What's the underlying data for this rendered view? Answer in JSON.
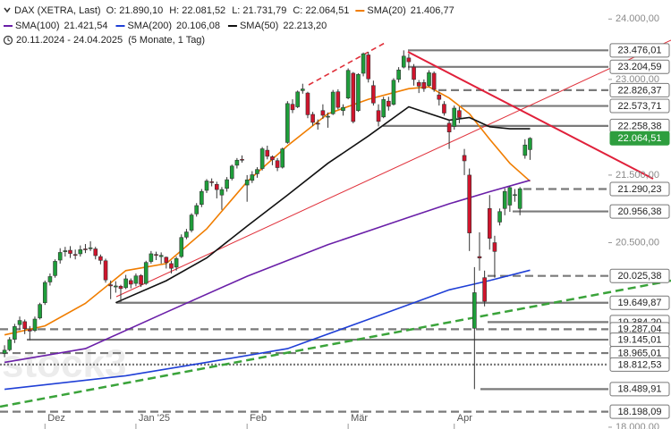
{
  "chart_data": {
    "type": "candlestick",
    "instrument": "DAX (XETRA, Last)",
    "ohlc_labels": [
      "O: 21.890,10",
      "H: 22.081,52",
      "L: 21.731,79",
      "C: 22.064,51"
    ],
    "range": "20.11.2024 - 24.04.2025",
    "range_note": "(5 Monate, 1 Tag)",
    "watermark": "stock3",
    "log_y": true,
    "grid": false,
    "up_color": "#1e9e3a",
    "down_color": "#d0142c",
    "ylim": [
      17977,
      24324
    ],
    "yticks": [
      {
        "value": 24000,
        "label": "24.000,00"
      },
      {
        "value": 23000,
        "label": "23.000,00"
      },
      {
        "value": 21500,
        "label": "21.500,00"
      },
      {
        "value": 20500,
        "label": "20.500,00"
      },
      {
        "value": 18000,
        "label": "18.000,00"
      }
    ],
    "xlim": [
      -0.9,
      119.5
    ],
    "xticks": [
      {
        "value": 8,
        "label": "Dez"
      },
      {
        "value": 26,
        "label": "Jan '25"
      },
      {
        "value": 48,
        "label": "Feb"
      },
      {
        "value": 68,
        "label": "Mär"
      },
      {
        "value": 89,
        "label": "Apr"
      }
    ],
    "candles": [
      [
        18960,
        19070,
        18910,
        19004
      ],
      [
        19010,
        19180,
        18990,
        19146
      ],
      [
        19150,
        19360,
        19100,
        19323
      ],
      [
        19350,
        19460,
        19280,
        19406
      ],
      [
        19390,
        19420,
        19220,
        19295
      ],
      [
        19280,
        19330,
        19140,
        19262
      ],
      [
        19270,
        19460,
        19250,
        19425
      ],
      [
        19440,
        19650,
        19420,
        19626
      ],
      [
        19650,
        19960,
        19620,
        19933
      ],
      [
        19940,
        20060,
        19890,
        20016
      ],
      [
        20030,
        20260,
        20000,
        20232
      ],
      [
        20250,
        20420,
        20200,
        20359
      ],
      [
        20370,
        20440,
        20300,
        20384
      ],
      [
        20390,
        20450,
        20280,
        20345
      ],
      [
        20330,
        20400,
        20260,
        20329
      ],
      [
        20340,
        20460,
        20300,
        20399
      ],
      [
        20410,
        20480,
        20350,
        20405
      ],
      [
        20420,
        20520,
        20380,
        20426
      ],
      [
        20410,
        20440,
        20260,
        20314
      ],
      [
        20300,
        20330,
        20190,
        20246
      ],
      [
        20240,
        20270,
        19930,
        19969
      ],
      [
        19900,
        19960,
        19700,
        19885
      ],
      [
        19870,
        19950,
        19790,
        19884
      ],
      [
        19880,
        19900,
        19660,
        19848
      ],
      [
        19860,
        20040,
        19840,
        19984
      ],
      [
        19960,
        19990,
        19850,
        19909
      ],
      [
        19920,
        20060,
        19880,
        20025
      ],
      [
        20030,
        20050,
        19870,
        19906
      ],
      [
        19920,
        20240,
        19900,
        20216
      ],
      [
        20230,
        20380,
        20200,
        20340
      ],
      [
        20330,
        20370,
        20250,
        20329
      ],
      [
        20300,
        20360,
        20200,
        20317
      ],
      [
        20290,
        20300,
        20130,
        20215
      ],
      [
        20200,
        20240,
        20060,
        20133
      ],
      [
        20150,
        20300,
        20100,
        20271
      ],
      [
        20300,
        20620,
        20280,
        20575
      ],
      [
        20580,
        20700,
        20550,
        20655
      ],
      [
        20680,
        20930,
        20650,
        20903
      ],
      [
        20920,
        21080,
        20880,
        21043
      ],
      [
        21060,
        21290,
        21020,
        21254
      ],
      [
        21270,
        21440,
        21230,
        21411
      ],
      [
        21400,
        21450,
        21330,
        21394
      ],
      [
        21360,
        21400,
        21150,
        21282
      ],
      [
        21200,
        21320,
        20980,
        21282
      ],
      [
        21300,
        21470,
        21250,
        21430
      ],
      [
        21450,
        21660,
        21420,
        21637
      ],
      [
        21650,
        21760,
        21600,
        21727
      ],
      [
        21740,
        21800,
        21690,
        21732
      ],
      [
        21350,
        21500,
        21100,
        21428
      ],
      [
        21420,
        21560,
        21380,
        21505
      ],
      [
        21520,
        21620,
        21460,
        21585
      ],
      [
        21600,
        21930,
        21570,
        21902
      ],
      [
        21880,
        21950,
        21740,
        21787
      ],
      [
        21780,
        21800,
        21650,
        21733
      ],
      [
        21720,
        21760,
        21560,
        21614
      ],
      [
        21620,
        21920,
        21600,
        21900
      ],
      [
        22000,
        22650,
        21980,
        22612
      ],
      [
        22600,
        22680,
        22460,
        22513
      ],
      [
        22560,
        22820,
        22540,
        22798
      ],
      [
        22820,
        22930,
        22770,
        22845
      ],
      [
        22780,
        22800,
        22380,
        22434
      ],
      [
        22440,
        22480,
        22260,
        22314
      ],
      [
        22300,
        22360,
        22200,
        22287
      ],
      [
        22500,
        22600,
        22370,
        22426
      ],
      [
        22400,
        22470,
        22230,
        22410
      ],
      [
        22450,
        22830,
        22430,
        22795
      ],
      [
        22800,
        22840,
        22520,
        22551
      ],
      [
        22500,
        22600,
        22420,
        22551
      ],
      [
        22700,
        23180,
        22680,
        23147
      ],
      [
        23100,
        23120,
        22300,
        22327
      ],
      [
        22500,
        23100,
        22480,
        23081
      ],
      [
        23100,
        23440,
        23050,
        23419
      ],
      [
        23400,
        23450,
        22950,
        23009
      ],
      [
        22900,
        22980,
        22580,
        22621
      ],
      [
        22500,
        22600,
        22250,
        22329
      ],
      [
        22400,
        22720,
        22380,
        22676
      ],
      [
        22650,
        22720,
        22500,
        22568
      ],
      [
        22600,
        23020,
        22580,
        22987
      ],
      [
        23000,
        23200,
        22950,
        23154
      ],
      [
        23200,
        23476.01,
        23180,
        23380
      ],
      [
        23350,
        23420,
        23150,
        23288
      ],
      [
        23200,
        23250,
        22900,
        22999
      ],
      [
        22950,
        22990,
        22780,
        22892
      ],
      [
        22950,
        23000,
        22800,
        22852
      ],
      [
        22900,
        23150,
        22880,
        23109
      ],
      [
        23100,
        23130,
        22800,
        22839
      ],
      [
        22750,
        22800,
        22580,
        22679
      ],
      [
        22600,
        22650,
        22420,
        22461
      ],
      [
        22300,
        22350,
        21900,
        22163
      ],
      [
        22250,
        22580,
        22200,
        22539
      ],
      [
        22500,
        22560,
        22300,
        22390
      ],
      [
        21800,
        21900,
        21500,
        21717
      ],
      [
        21500,
        21600,
        20380,
        20641
      ],
      [
        19300,
        20150,
        18489.91,
        19790
      ],
      [
        20300,
        20650,
        20100,
        20280
      ],
      [
        20000,
        20100,
        19600,
        19670
      ],
      [
        21000,
        21200,
        20400,
        20563
      ],
      [
        20500,
        20600,
        20000,
        20374
      ],
      [
        20800,
        21000,
        20750,
        20954
      ],
      [
        21000,
        21300,
        20900,
        21254
      ],
      [
        21050,
        21330,
        20950,
        21311
      ],
      [
        21200,
        21290,
        21100,
        21206
      ],
      [
        21000,
        21320,
        20900,
        21294
      ],
      [
        21800,
        22050,
        21750,
        21961
      ],
      [
        21890.1,
        22081.52,
        21731.79,
        22064.51
      ]
    ],
    "series": [
      {
        "name": "SMA(20)",
        "color": "#f07d00",
        "value_label": "21.406,77",
        "x": [
          0,
          8,
          16,
          24,
          32,
          40,
          48,
          56,
          64,
          72,
          80,
          84,
          88,
          92,
          96,
          100,
          104
        ],
        "values": [
          19210,
          19332,
          19640,
          20100,
          20200,
          20700,
          21400,
          21950,
          22450,
          22680,
          22850,
          22880,
          22700,
          22450,
          22050,
          21680,
          21406.77
        ]
      },
      {
        "name": "SMA(100)",
        "color": "#6a1fa8",
        "value_label": "21.421,54",
        "x": [
          0,
          16,
          32,
          48,
          64,
          80,
          88,
          96,
          104
        ],
        "values": [
          18842,
          19025,
          19520,
          20020,
          20470,
          20870,
          21070,
          21250,
          21421.54
        ]
      },
      {
        "name": "SMA(200)",
        "color": "#1f3fd6",
        "value_label": "20.106,08",
        "x": [
          0,
          24,
          40,
          56,
          72,
          88,
          96,
          104
        ],
        "values": [
          18487,
          18665,
          18842,
          19025,
          19420,
          19830,
          19960,
          20106.08
        ]
      },
      {
        "name": "SMA(50)",
        "color": "#111111",
        "value_label": "22.213,20",
        "x": [
          22,
          32,
          40,
          48,
          56,
          64,
          72,
          80,
          88,
          92,
          96,
          100,
          104
        ],
        "values": [
          19650,
          19958,
          20280,
          20740,
          21200,
          21680,
          22100,
          22560,
          22350,
          22390,
          22245,
          22213,
          22213.2
        ]
      }
    ],
    "levels": [
      {
        "value": 23476.01,
        "label": "23.476,01",
        "style": "solid"
      },
      {
        "value": 23204.59,
        "label": "23.204,59",
        "style": "solid"
      },
      {
        "value": 22826.37,
        "label": "22.826,37",
        "style": "dashed"
      },
      {
        "value": 22573.71,
        "label": "22.573,71",
        "style": "solid"
      },
      {
        "value": 22258.38,
        "label": "22.258,38",
        "style": "solid"
      },
      {
        "value": 22064.51,
        "label": "22.064,51",
        "style": "current"
      },
      {
        "value": 21290.23,
        "label": "21.290,23",
        "style": "dashed"
      },
      {
        "value": 20956.38,
        "label": "20.956,38",
        "style": "solid"
      },
      {
        "value": 20025.38,
        "label": "20.025,38",
        "style": "dashed"
      },
      {
        "value": 19649.87,
        "label": "19.649,87",
        "style": "solid"
      },
      {
        "value": 19384.2,
        "label": "19.384,20",
        "style": "solid"
      },
      {
        "value": 19287.04,
        "label": "19.287,04",
        "style": "dashed"
      },
      {
        "value": 19145.01,
        "label": "19.145,01",
        "style": "solid"
      },
      {
        "value": 18965.01,
        "label": "18.965,01",
        "style": "dashed"
      },
      {
        "value": 18812.53,
        "label": "18.812,53",
        "style": "dotted"
      },
      {
        "value": 18489.91,
        "label": "18.489,91",
        "style": "solid"
      },
      {
        "value": 18198.09,
        "label": "18.198,09",
        "style": "dashed"
      }
    ]
  }
}
